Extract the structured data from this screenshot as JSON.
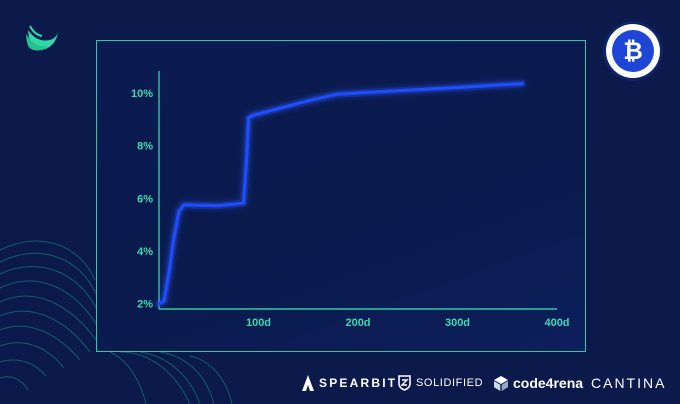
{
  "brand": {
    "logo_icon": "bird-logo-icon",
    "badge_icon": "bitcoin-icon",
    "badge_glyph": "₿"
  },
  "colors": {
    "background": "#0b1a4a",
    "panel_border": "#2fc9a6",
    "axis": "#2fc9a6",
    "tick_text": "#3fd9b0",
    "line": "#1f4cff"
  },
  "chart_data": {
    "type": "line",
    "x_unit": "days",
    "x": [
      0,
      5,
      10,
      15,
      20,
      25,
      30,
      40,
      60,
      85,
      88,
      90,
      95,
      110,
      150,
      180,
      250,
      300,
      365
    ],
    "series": [
      {
        "values": [
          2.0,
          2.1,
          3.2,
          4.5,
          5.5,
          5.75,
          5.75,
          5.73,
          5.72,
          5.82,
          7.5,
          9.05,
          9.15,
          9.3,
          9.7,
          9.95,
          10.1,
          10.2,
          10.35
        ]
      }
    ],
    "xlim": [
      0,
      400
    ],
    "ylim": [
      1.8,
      10.6
    ],
    "x_ticks": [
      100,
      200,
      300,
      400
    ],
    "x_tick_labels": [
      "100d",
      "200d",
      "300d",
      "400d"
    ],
    "y_ticks": [
      2,
      4,
      6,
      8,
      10
    ],
    "y_tick_labels": [
      "2%",
      "4%",
      "6%",
      "8%",
      "10%"
    ],
    "grid": false,
    "title": "",
    "xlabel": "",
    "ylabel": ""
  },
  "partners": [
    {
      "label": "SPEARBIT",
      "icon": "spearbit-icon"
    },
    {
      "label": "SOLIDIFIED",
      "icon": "shield-icon"
    },
    {
      "label": "code4rena",
      "icon": "cube-icon"
    },
    {
      "label": "CANTINA",
      "icon": ""
    }
  ]
}
